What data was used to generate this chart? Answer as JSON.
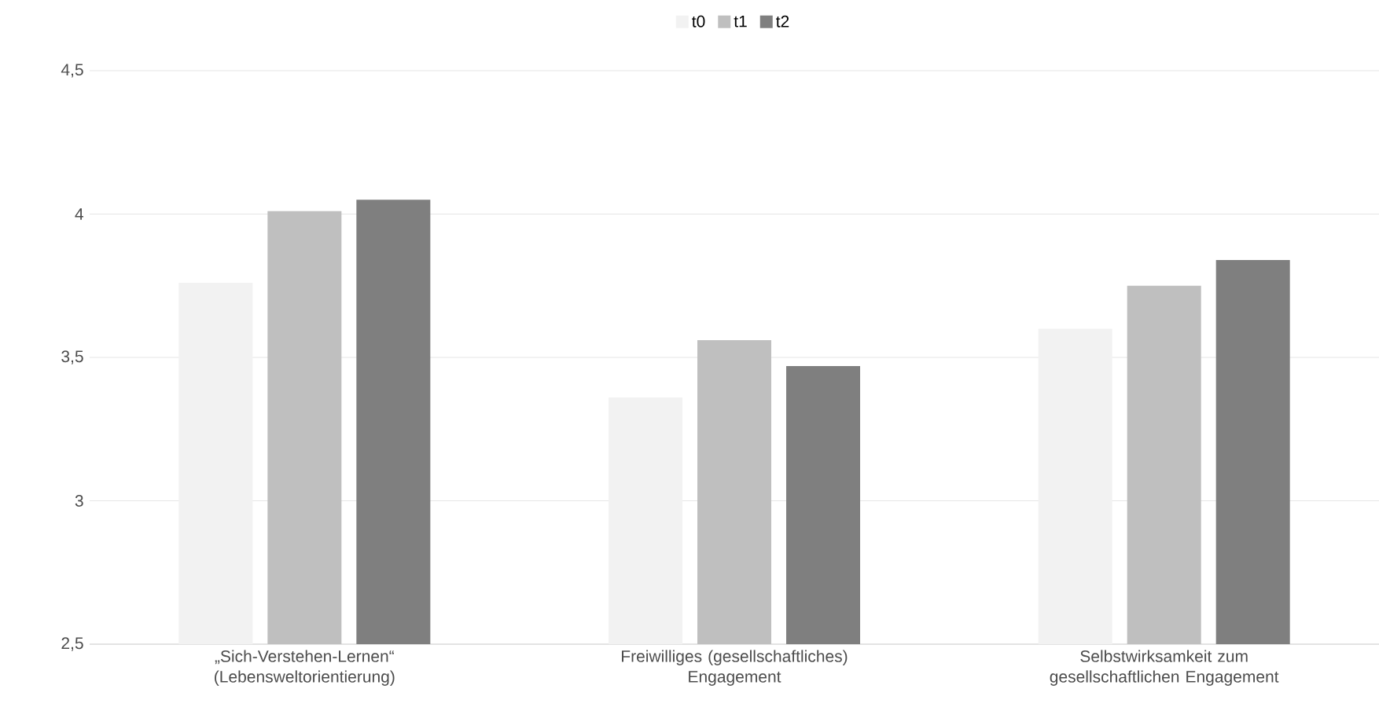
{
  "chart_data": {
    "type": "bar",
    "categories": [
      "„Sich-Verstehen-Lernen“ (Lebensweltorientierung)",
      "Freiwilliges (gesellschaftliches) Engagement",
      "Selbstwirksamkeit zum gesellschaftlichen Engagement"
    ],
    "series": [
      {
        "name": "t0",
        "color": "#f2f2f2",
        "values": [
          3.76,
          3.36,
          3.6
        ]
      },
      {
        "name": "t1",
        "color": "#bfbfbf",
        "values": [
          4.01,
          3.56,
          3.75
        ]
      },
      {
        "name": "t2",
        "color": "#7f7f7f",
        "values": [
          4.05,
          3.47,
          3.84
        ]
      }
    ],
    "ylim": [
      2.5,
      4.5
    ],
    "yticks": [
      {
        "value": 2.5,
        "label": "2,5"
      },
      3,
      {
        "value": 3.5,
        "label": "3,5"
      },
      4,
      {
        "value": 4.5,
        "label": "4,5"
      }
    ],
    "grid": "y",
    "legend": "top"
  }
}
